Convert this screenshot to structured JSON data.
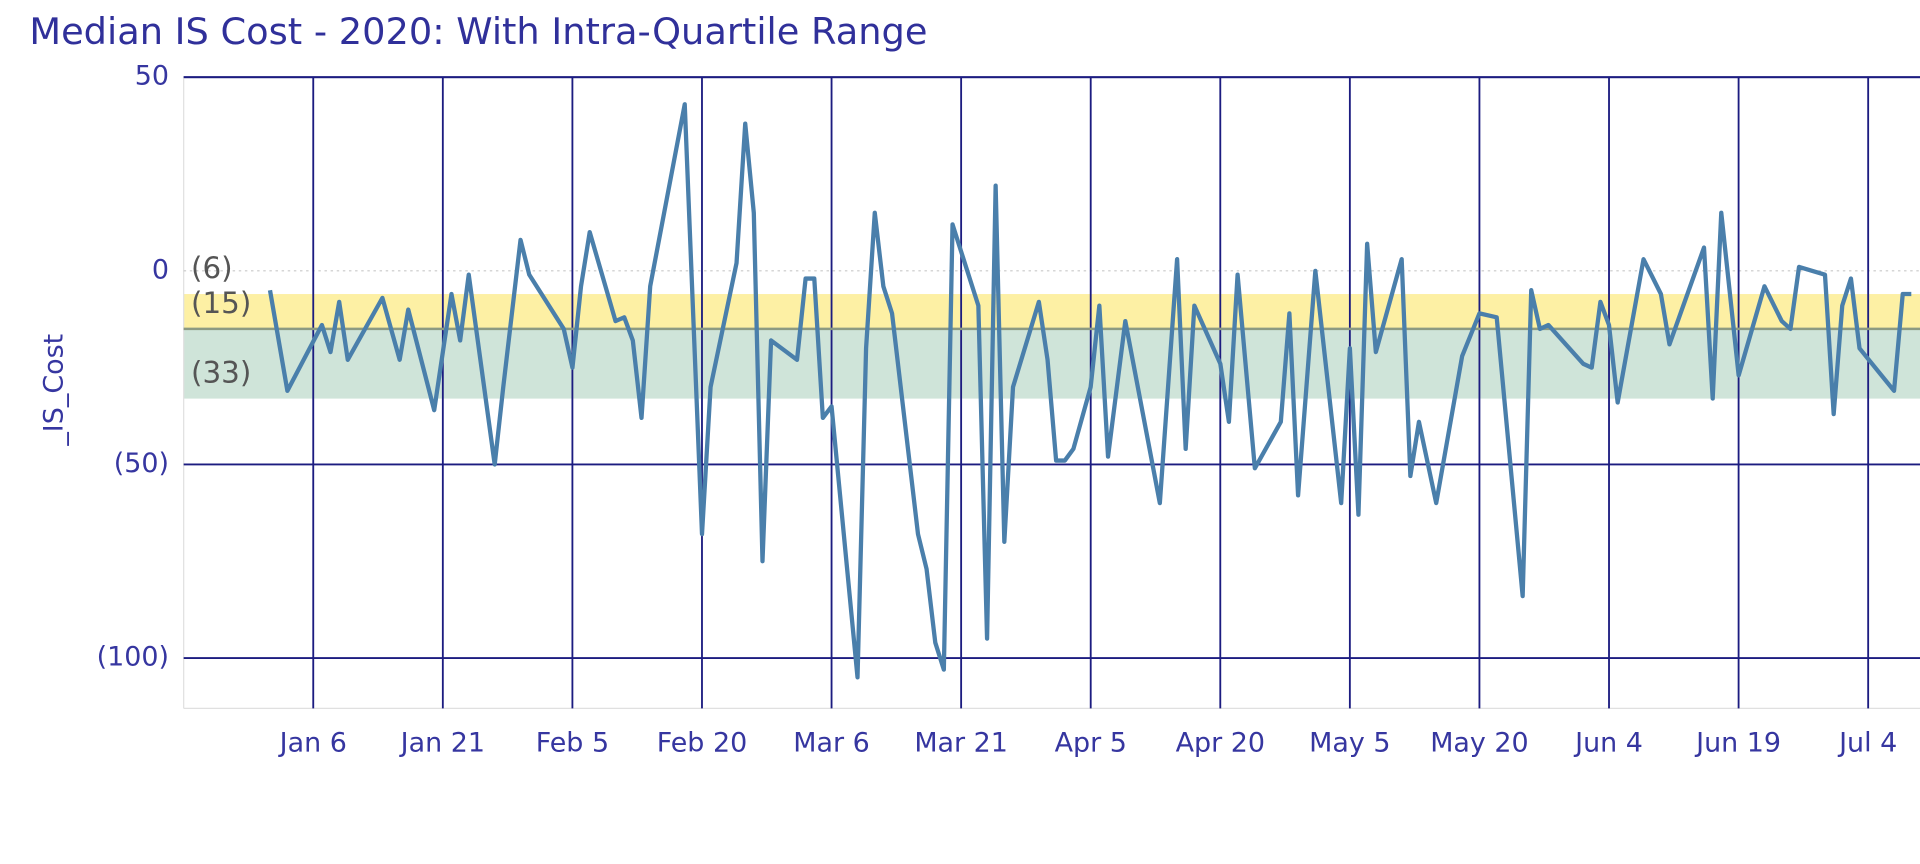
{
  "chart_data": {
    "type": "line",
    "title": "Median IS Cost - 2020: With Intra-Quartile Range",
    "y_label": "_IS_Cost",
    "x": [
      "Jan 1",
      "Jan 3",
      "Jan 7",
      "Jan 8",
      "Jan 9",
      "Jan 10",
      "Jan 14",
      "Jan 16",
      "Jan 17",
      "Jan 20",
      "Jan 22",
      "Jan 23",
      "Jan 24",
      "Jan 27",
      "Jan 28",
      "Jan 30",
      "Jan 31",
      "Feb 4",
      "Feb 5",
      "Feb 6",
      "Feb 7",
      "Feb 10",
      "Feb 11",
      "Feb 12",
      "Feb 13",
      "Feb 14",
      "Feb 18",
      "Feb 20",
      "Feb 21",
      "Feb 24",
      "Feb 25",
      "Feb 26",
      "Feb 27",
      "Feb 28",
      "Mar 2",
      "Mar 3",
      "Mar 4",
      "Mar 5",
      "Mar 6",
      "Mar 9",
      "Mar 10",
      "Mar 11",
      "Mar 12",
      "Mar 13",
      "Mar 16",
      "Mar 17",
      "Mar 18",
      "Mar 19",
      "Mar 20",
      "Mar 21",
      "Mar 23",
      "Mar 24",
      "Mar 25",
      "Mar 26",
      "Mar 27",
      "Mar 30",
      "Mar 31",
      "Apr 1",
      "Apr 2",
      "Apr 3",
      "Apr 5",
      "Apr 6",
      "Apr 7",
      "Apr 9",
      "Apr 13",
      "Apr 15",
      "Apr 16",
      "Apr 17",
      "Apr 20",
      "Apr 21",
      "Apr 22",
      "Apr 24",
      "Apr 27",
      "Apr 28",
      "Apr 29",
      "May 1",
      "May 4",
      "May 5",
      "May 6",
      "May 7",
      "May 8",
      "May 11",
      "May 12",
      "May 13",
      "May 15",
      "May 18",
      "May 20",
      "May 22",
      "May 25",
      "May 26",
      "May 27",
      "May 28",
      "Jun 1",
      "Jun 2",
      "Jun 3",
      "Jun 4",
      "Jun 5",
      "Jun 8",
      "Jun 10",
      "Jun 11",
      "Jun 15",
      "Jun 16",
      "Jun 17",
      "Jun 19",
      "Jun 22",
      "Jun 24",
      "Jun 25",
      "Jun 26",
      "Jun 29",
      "Jun 30",
      "Jul 1",
      "Jul 2",
      "Jul 3",
      "Jul 7",
      "Jul 8",
      "Jul 9"
    ],
    "series": [
      {
        "name": "_IS_Cost",
        "color": "#4a7fab",
        "values": [
          -5,
          -31,
          -14,
          -21,
          -8,
          -23,
          -7,
          -23,
          -10,
          -36,
          -6,
          -18,
          -1,
          -50,
          -30,
          8,
          -1,
          -15,
          -25,
          -4,
          10,
          -13,
          -12,
          -18,
          -38,
          -4,
          43,
          -68,
          -30,
          2,
          38,
          15,
          -75,
          -18,
          -23,
          -2,
          -2,
          -38,
          -35,
          -105,
          -20,
          15,
          -4,
          -11,
          -68,
          -77,
          -96,
          -103,
          12,
          5,
          -9,
          -95,
          22,
          -70,
          -30,
          -8,
          -23,
          -49,
          -49,
          -46,
          -30,
          -9,
          -48,
          -13,
          -60,
          3,
          -46,
          -9,
          -24,
          -39,
          -1,
          -51,
          -39,
          -11,
          -58,
          0,
          -60,
          -20,
          -63,
          7,
          -21,
          3,
          -53,
          -39,
          -60,
          -22,
          -11,
          -12,
          -84,
          -5,
          -15,
          -14,
          -24,
          -25,
          -8,
          -14,
          -34,
          3,
          -6,
          -19,
          6,
          -33,
          15,
          -27,
          -4,
          -13,
          -15,
          1,
          -1,
          -37,
          -9,
          -2,
          -20,
          -31,
          -6,
          -6
        ]
      }
    ],
    "xlim": [
      "Dec 22",
      "Jul 10"
    ],
    "xticks": [
      "Jan 6",
      "Jan 21",
      "Feb 5",
      "Feb 20",
      "Mar 6",
      "Mar 21",
      "Apr 5",
      "Apr 20",
      "May 5",
      "May 20",
      "Jun 4",
      "Jun 19",
      "Jul 4"
    ],
    "ylim": [
      -113,
      50
    ],
    "yticks": [
      50,
      0,
      {
        "value": -50,
        "label": "(50)"
      },
      {
        "value": -100,
        "label": "(100)"
      }
    ],
    "grid": true,
    "reference_bands": [
      {
        "from": -15,
        "to": -6,
        "color": "#fdf0a4"
      },
      {
        "from": -33,
        "to": -15,
        "color": "#cfe4d9"
      }
    ],
    "reference_lines": [
      {
        "value": -6,
        "label": "(6)"
      },
      {
        "value": -15,
        "label": "(15)",
        "color": "#8c9a82"
      },
      {
        "value": -33,
        "label": "(33)"
      }
    ]
  }
}
